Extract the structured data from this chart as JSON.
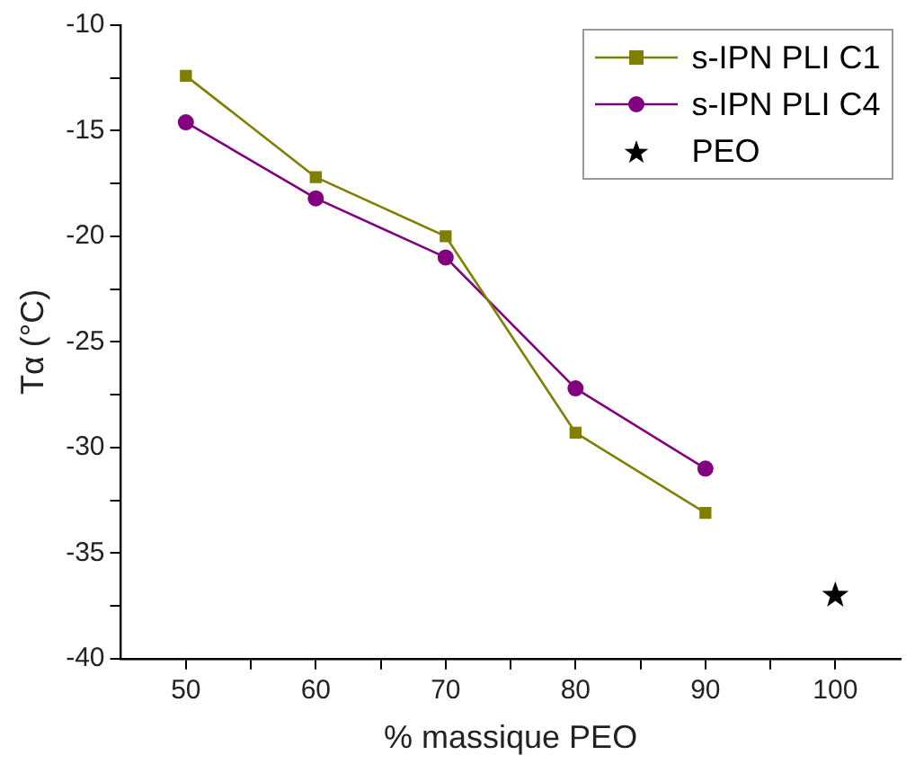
{
  "chart_data": {
    "type": "line",
    "xlabel": "% massique PEO",
    "ylabel": "Tα (°C)",
    "xlim": [
      45,
      105
    ],
    "ylim": [
      -40,
      -10
    ],
    "xticks": [
      50,
      {
        "value": 55,
        "label": null
      },
      60,
      {
        "value": 65,
        "label": null
      },
      70,
      {
        "value": 75,
        "label": null
      },
      80,
      {
        "value": 85,
        "label": null
      },
      90,
      {
        "value": 95,
        "label": null
      },
      100
    ],
    "yticks": [
      -40,
      {
        "value": -37.5,
        "label": null
      },
      -35,
      {
        "value": -32.5,
        "label": null
      },
      -30,
      {
        "value": -27.5,
        "label": null
      },
      -25,
      {
        "value": -22.5,
        "label": null
      },
      -20,
      {
        "value": -17.5,
        "label": null
      },
      -15,
      {
        "value": -12.5,
        "label": null
      },
      -10
    ],
    "grid": false,
    "legend": "top right",
    "series": [
      {
        "name": "s-IPN PLI C1",
        "color": "#808000",
        "marker": "square",
        "x": [
          50,
          60,
          70,
          80,
          90
        ],
        "values": [
          -12.4,
          -17.2,
          -20.0,
          -29.3,
          -33.1
        ]
      },
      {
        "name": "s-IPN PLI C4",
        "color": "#800080",
        "marker": "circle",
        "x": [
          50,
          60,
          70,
          80,
          90
        ],
        "values": [
          -14.6,
          -18.2,
          -21.0,
          -27.2,
          -31.0
        ]
      },
      {
        "name": "PEO",
        "type": "scatter",
        "color": "#000000",
        "marker": "star",
        "x": [
          100
        ],
        "values": [
          -37.0
        ]
      }
    ]
  }
}
